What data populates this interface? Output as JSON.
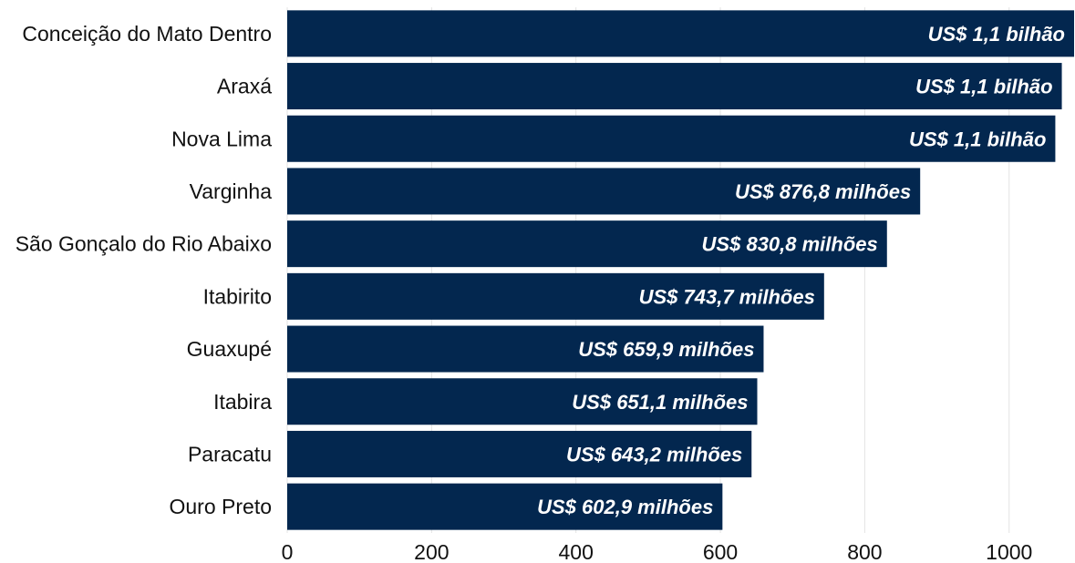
{
  "chart_data": {
    "type": "bar",
    "orientation": "horizontal",
    "categories": [
      "Conceição do Mato Dentro",
      "Araxá",
      "Nova Lima",
      "Varginha",
      "São Gonçalo do Rio Abaixo",
      "Itabirito",
      "Guaxupé",
      "Itabira",
      "Paracatu",
      "Ouro Preto"
    ],
    "values": [
      1090,
      1073,
      1064,
      876.8,
      830.8,
      743.7,
      659.9,
      651.1,
      643.2,
      602.9
    ],
    "data_labels": [
      "US$ 1,1 bilhão",
      "US$ 1,1 bilhão",
      "US$ 1,1 bilhão",
      "US$ 876,8 milhões",
      "US$ 830,8 milhões",
      "US$ 743,7 milhões",
      "US$ 659,9 milhões",
      "US$ 651,1 milhões",
      "US$ 643,2 milhões",
      "US$ 602,9 milhões"
    ],
    "xticks": [
      0,
      200,
      400,
      600,
      800,
      1000
    ],
    "xlim": [
      0,
      1090
    ],
    "grid": true,
    "bar_color": "#03274f",
    "grid_color": "#e3e3e3"
  }
}
